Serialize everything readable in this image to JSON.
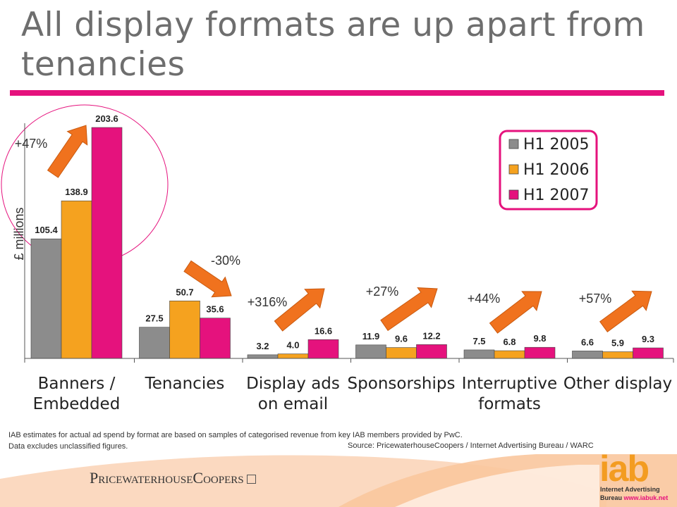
{
  "slide": {
    "title": "All display formats are up apart from tenancies",
    "footnote_line1": "IAB estimates for actual ad spend by  format are based on samples of categorised revenue from key IAB members provided by PwC.",
    "footnote_line2": "Data excludes unclassified figures.",
    "source": "Source: PricewaterhouseCoopers / Internet  Advertising Bureau / WARC"
  },
  "logos": {
    "pwc": "PricewaterhouseCoopers",
    "iab": "iab",
    "iab_line1": "Internet Advertising",
    "iab_line2_a": "Bureau",
    "iab_line2_b": "www.iabuk.net"
  },
  "colors": {
    "accent": "#e5127d",
    "series": [
      "#8c8c8c",
      "#f5a21f",
      "#e5127d"
    ],
    "arrow": "#f0721e",
    "title": "#6e6e6e"
  },
  "chart_data": {
    "type": "bar",
    "ylabel": "£ millions",
    "categories": [
      [
        "Banners /",
        "Embedded"
      ],
      [
        "Tenancies"
      ],
      [
        "Display ads",
        "on email"
      ],
      [
        "Sponsorships"
      ],
      [
        "Interruptive",
        "formats"
      ],
      [
        "Other display"
      ]
    ],
    "series": [
      {
        "name": "H1 2005",
        "values": [
          105.4,
          27.5,
          3.2,
          11.9,
          7.5,
          6.6
        ]
      },
      {
        "name": "H1 2006",
        "values": [
          138.9,
          50.7,
          4.0,
          9.6,
          6.8,
          5.9
        ]
      },
      {
        "name": "H1 2007",
        "values": [
          203.6,
          35.6,
          16.6,
          12.2,
          9.8,
          9.3
        ]
      }
    ],
    "ylim": [
      0,
      203.6
    ],
    "grid": false,
    "legend_position": "top-right",
    "annotations": [
      {
        "text": "+47%",
        "direction": "up"
      },
      {
        "text": "-30%",
        "direction": "down"
      },
      {
        "text": "+316%",
        "direction": "up"
      },
      {
        "text": "+27%",
        "direction": "up"
      },
      {
        "text": "+44%",
        "direction": "up"
      },
      {
        "text": "+57%",
        "direction": "up"
      }
    ]
  }
}
